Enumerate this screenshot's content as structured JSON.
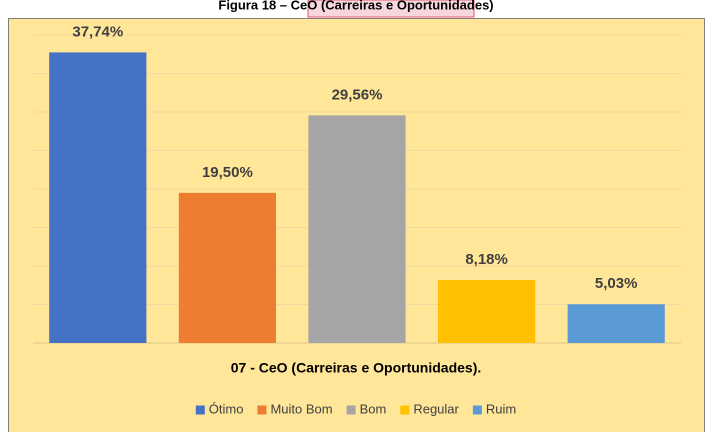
{
  "chart_data": {
    "type": "bar",
    "title": "Figura 18 – CeO (Carreiras e Oportunidades)",
    "xlabel": "07 - CeO (Carreiras e Oportunidades).",
    "categories": [
      "Ótimo",
      "Muito Bom",
      "Bom",
      "Regular",
      "Ruim"
    ],
    "values": [
      37.74,
      19.5,
      29.56,
      8.18,
      5.03
    ],
    "value_labels": [
      "37,74%",
      "19,50%",
      "29,56%",
      "8,18%",
      "5,03%"
    ],
    "colors": [
      "#4472c4",
      "#ed7d31",
      "#a5a5a5",
      "#ffc000",
      "#5b9bd5"
    ],
    "ylim": [
      0,
      40
    ],
    "yticks": [
      0,
      5,
      10,
      15,
      20,
      25,
      30,
      35,
      40
    ],
    "grid": true,
    "legend": "bottom"
  }
}
